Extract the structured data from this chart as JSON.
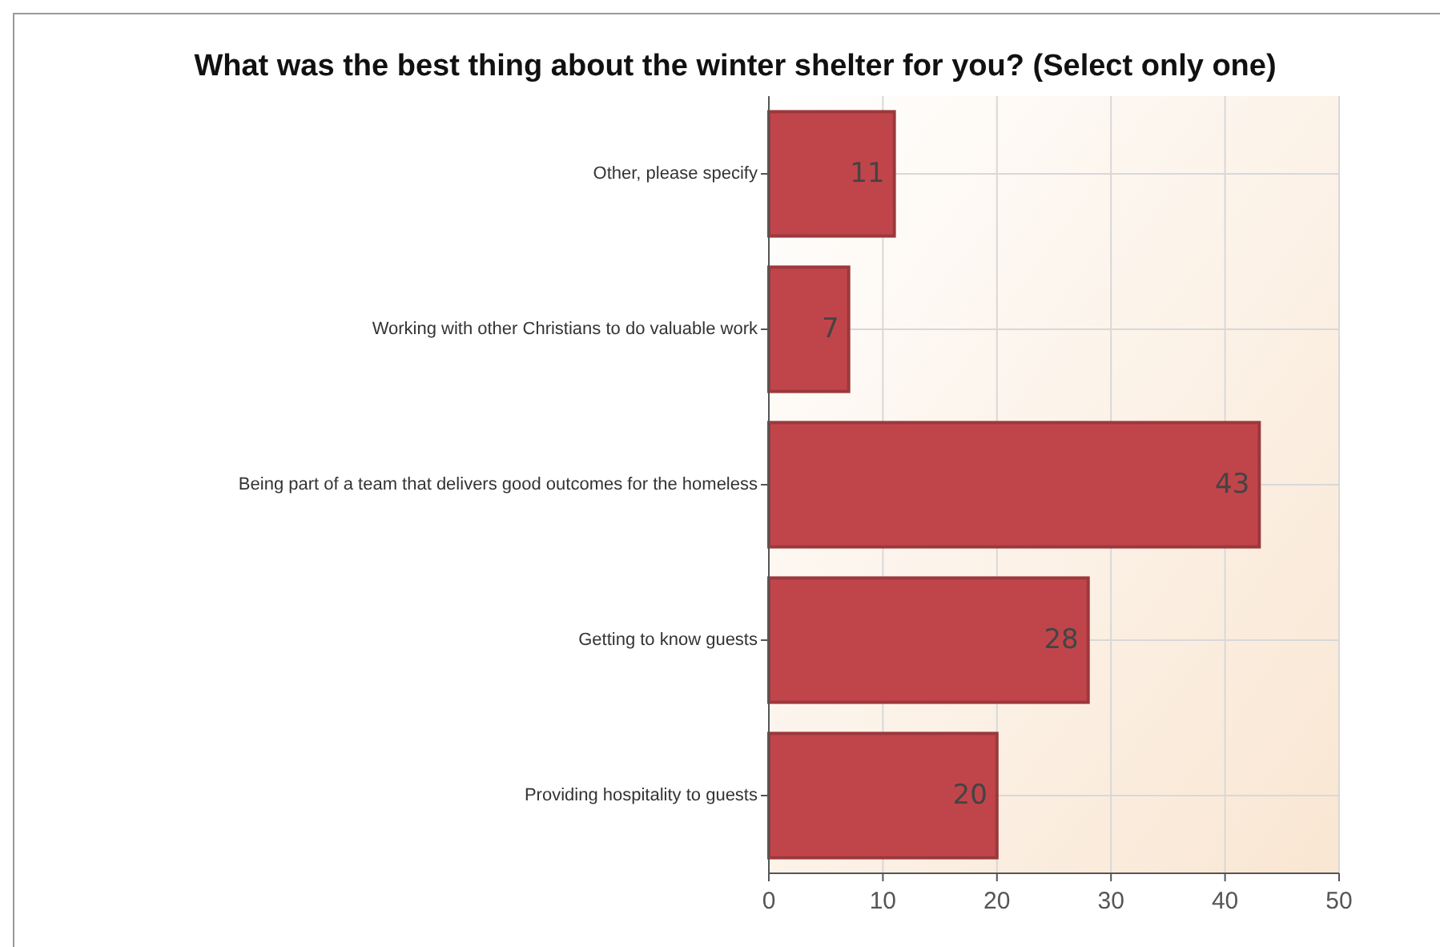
{
  "chart_data": {
    "type": "bar",
    "orientation": "horizontal",
    "title": "What was the best thing about the winter shelter for you? (Select only one)",
    "categories": [
      "Other, please specify",
      "Working with other Christians to do valuable work",
      "Being part of a team that delivers good outcomes for the homeless",
      "Getting to know guests",
      "Providing hospitality to guests"
    ],
    "values": [
      11,
      7,
      43,
      28,
      20
    ],
    "color": "#c0454a",
    "xlim": [
      0,
      50
    ],
    "xticks": [
      0,
      10,
      20,
      30,
      40,
      50
    ],
    "grid": true,
    "data_labels": true
  }
}
